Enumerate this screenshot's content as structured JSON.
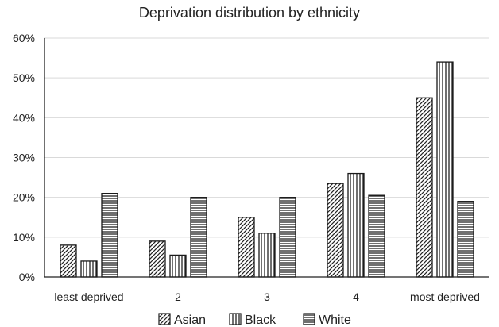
{
  "chart_data": {
    "type": "bar",
    "title": "Deprivation distribution by ethnicity",
    "xlabel": "",
    "ylabel": "",
    "categories": [
      "least deprived",
      "2",
      "3",
      "4",
      "most deprived"
    ],
    "series": [
      {
        "name": "Asian",
        "values": [
          8,
          9,
          15,
          23.5,
          45
        ],
        "pattern": "diagonal-hatch"
      },
      {
        "name": "Black",
        "values": [
          4,
          5.5,
          11,
          26,
          54
        ],
        "pattern": "vertical-lines"
      },
      {
        "name": "White",
        "values": [
          21,
          20,
          20,
          20.5,
          19
        ],
        "pattern": "horizontal-lines"
      }
    ],
    "ylim": [
      0,
      60
    ],
    "yticks": [
      0,
      10,
      20,
      30,
      40,
      50,
      60
    ],
    "ytick_labels": [
      "0%",
      "10%",
      "20%",
      "30%",
      "40%",
      "50%",
      "60%"
    ],
    "grid": true,
    "legend_position": "bottom"
  }
}
